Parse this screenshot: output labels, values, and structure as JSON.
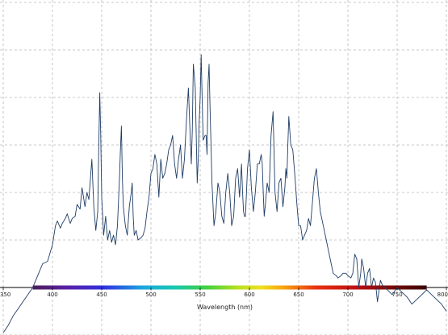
{
  "chart_data": {
    "type": "line",
    "title": "",
    "xlabel": "Wavelength (nm)",
    "ylabel": "",
    "xlim": [
      350,
      800
    ],
    "ylim": [
      -1,
      6
    ],
    "x_ticks": [
      350,
      400,
      450,
      500,
      550,
      600,
      650,
      700,
      750,
      800
    ],
    "x_tick_labels": [
      "350",
      "400",
      "450",
      "500",
      "550",
      "600",
      "650",
      "700",
      "750",
      "800"
    ],
    "grid": true,
    "legend": "none",
    "spectrum_bar": {
      "from": 380,
      "to": 780
    },
    "series": [
      {
        "color": "#1f3d66",
        "x": [
          350,
          355,
          360,
          365,
          370,
          375,
          380,
          385,
          390,
          395,
          400,
          403,
          405,
          408,
          410,
          413,
          415,
          418,
          420,
          423,
          425,
          428,
          430,
          433,
          435,
          437,
          440,
          442,
          444,
          446,
          447,
          448,
          449,
          450,
          452,
          454,
          456,
          458,
          460,
          462,
          464,
          466,
          468,
          469,
          470,
          471,
          472,
          474,
          476,
          478,
          480,
          481,
          482,
          483,
          485,
          487,
          490,
          492,
          494,
          496,
          498,
          500,
          502,
          504,
          506,
          508,
          510,
          512,
          514,
          516,
          518,
          520,
          522,
          524,
          526,
          528,
          530,
          532,
          534,
          536,
          538,
          540,
          541,
          542,
          543,
          545,
          547,
          548,
          549,
          550,
          551,
          552,
          553,
          555,
          556,
          557,
          558,
          559,
          560,
          562,
          564,
          566,
          568,
          570,
          572,
          574,
          576,
          578,
          580,
          582,
          584,
          586,
          588,
          590,
          592,
          593,
          594,
          595,
          596,
          598,
          600,
          602,
          604,
          606,
          608,
          610,
          612,
          613,
          614,
          615,
          616,
          618,
          620,
          622,
          624,
          626,
          628,
          630,
          632,
          634,
          636,
          637,
          638,
          639,
          640,
          642,
          644,
          646,
          648,
          650,
          652,
          654,
          656,
          658,
          660,
          662,
          664,
          666,
          668,
          670,
          672,
          675,
          678,
          680,
          683,
          685,
          688,
          690,
          693,
          695,
          698,
          700,
          703,
          705,
          707,
          709,
          711,
          713,
          714,
          716,
          718,
          720,
          722,
          724,
          726,
          728,
          730,
          733,
          735,
          738,
          740,
          745,
          750,
          755,
          760,
          765,
          770,
          775,
          780,
          785,
          790,
          795,
          800
        ],
        "y": [
          -0.95,
          -0.8,
          -0.6,
          -0.45,
          -0.3,
          -0.15,
          0.0,
          0.25,
          0.5,
          0.55,
          0.9,
          1.3,
          1.4,
          1.25,
          1.35,
          1.45,
          1.55,
          1.35,
          1.45,
          1.5,
          1.75,
          1.65,
          2.1,
          1.7,
          2.0,
          1.85,
          2.7,
          1.7,
          1.2,
          1.6,
          2.9,
          4.1,
          3.2,
          1.9,
          1.1,
          1.5,
          1.0,
          1.2,
          0.95,
          1.1,
          0.9,
          1.3,
          2.3,
          2.9,
          3.4,
          2.3,
          1.7,
          1.3,
          1.1,
          1.7,
          2.0,
          2.2,
          1.5,
          1.1,
          1.2,
          1.0,
          1.05,
          1.1,
          1.25,
          1.6,
          1.9,
          2.4,
          2.5,
          2.8,
          2.6,
          1.9,
          2.7,
          2.3,
          2.4,
          2.6,
          2.9,
          3.0,
          3.2,
          2.6,
          2.3,
          2.7,
          3.0,
          2.3,
          2.7,
          3.5,
          4.2,
          3.1,
          2.6,
          3.3,
          4.7,
          4.2,
          2.2,
          2.7,
          3.5,
          4.0,
          4.9,
          4.0,
          3.1,
          3.2,
          3.2,
          2.8,
          4.3,
          4.7,
          3.8,
          2.2,
          1.3,
          1.6,
          2.2,
          2.0,
          1.5,
          1.35,
          2.0,
          2.4,
          2.0,
          1.3,
          1.5,
          2.3,
          2.5,
          1.9,
          2.6,
          2.0,
          1.6,
          1.5,
          1.5,
          2.5,
          2.9,
          2.1,
          1.6,
          2.0,
          2.6,
          2.6,
          2.8,
          2.6,
          2.0,
          1.5,
          1.7,
          2.2,
          2.0,
          3.2,
          3.7,
          2.0,
          1.6,
          2.2,
          2.3,
          1.7,
          2.1,
          2.5,
          2.3,
          3.0,
          3.6,
          3.0,
          2.9,
          2.4,
          1.8,
          1.3,
          1.3,
          1.0,
          1.1,
          1.2,
          1.45,
          1.3,
          1.8,
          2.3,
          2.5,
          2.0,
          1.6,
          1.3,
          1.0,
          0.8,
          0.5,
          0.3,
          0.25,
          0.2,
          0.25,
          0.3,
          0.3,
          0.25,
          0.2,
          0.3,
          0.7,
          0.6,
          0.0,
          0.3,
          0.6,
          0.4,
          0.0,
          0.3,
          0.4,
          0.0,
          0.2,
          0.1,
          -0.3,
          0.15,
          0.05,
          0.0,
          -0.05,
          -0.15,
          0.0,
          -0.1,
          -0.2,
          -0.35,
          -0.25,
          -0.15,
          -0.05,
          -0.15,
          -0.25,
          -0.35,
          -0.5
        ]
      }
    ]
  }
}
